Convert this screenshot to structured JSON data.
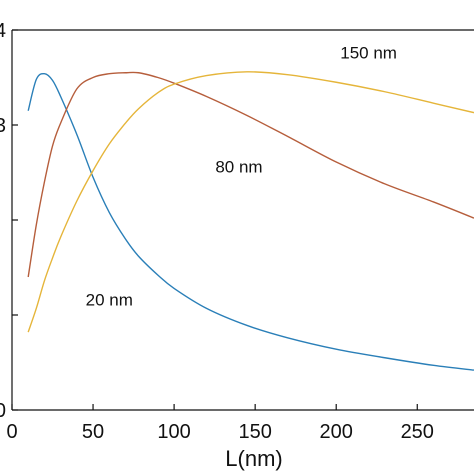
{
  "chart_data": {
    "type": "line",
    "title": "",
    "xlabel": "L(nm)",
    "ylabel": "",
    "xlim": [
      0,
      285
    ],
    "ylim": [
      0,
      4
    ],
    "x_ticks": [
      0,
      50,
      100,
      150,
      200,
      250
    ],
    "y_ticks": [
      0,
      1,
      2,
      3,
      4
    ],
    "y_tick_labels": [
      "0",
      "",
      "",
      "3",
      "4"
    ],
    "grid": false,
    "legend": "none",
    "x": [
      10,
      15,
      20,
      25,
      30,
      40,
      50,
      60,
      70,
      78,
      90,
      100,
      120,
      145,
      170,
      200,
      230,
      260,
      285
    ],
    "series": [
      {
        "color": "#2a7fb8",
        "values": [
          3.15,
          3.48,
          3.54,
          3.47,
          3.3,
          2.9,
          2.45,
          2.08,
          1.8,
          1.62,
          1.42,
          1.28,
          1.07,
          0.89,
          0.76,
          0.64,
          0.55,
          0.47,
          0.42
        ]
      },
      {
        "color": "#b65e3c",
        "values": [
          1.4,
          1.95,
          2.4,
          2.78,
          3.02,
          3.38,
          3.5,
          3.54,
          3.55,
          3.55,
          3.5,
          3.44,
          3.3,
          3.1,
          2.88,
          2.61,
          2.38,
          2.19,
          2.02
        ]
      },
      {
        "color": "#e5b53a",
        "values": [
          0.82,
          1.07,
          1.36,
          1.6,
          1.82,
          2.2,
          2.52,
          2.8,
          3.02,
          3.17,
          3.34,
          3.43,
          3.52,
          3.56,
          3.53,
          3.45,
          3.35,
          3.23,
          3.13
        ]
      }
    ],
    "annotations": [
      {
        "text": "20 nm",
        "x": 60,
        "y": 1.1
      },
      {
        "text": "80 nm",
        "x": 140,
        "y": 2.5
      },
      {
        "text": "150 nm",
        "x": 220,
        "y": 3.7
      }
    ]
  }
}
